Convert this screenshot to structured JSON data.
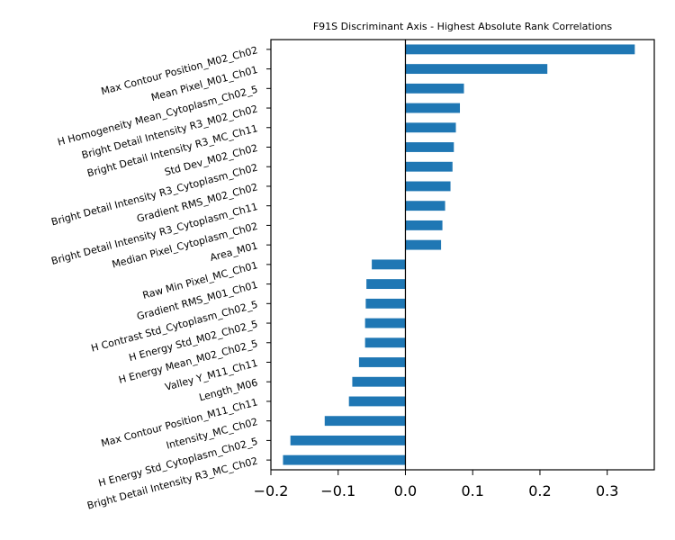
{
  "chart_data": {
    "type": "bar",
    "orientation": "horizontal",
    "title": "F91S Discriminant Axis - Highest Absolute Rank Correlations",
    "xlabel": "",
    "ylabel": "",
    "xlim": [
      -0.2,
      0.37
    ],
    "xticks": [
      "−0.2",
      "−0.1",
      "0.0",
      "0.1",
      "0.2",
      "0.3"
    ],
    "xtick_values": [
      -0.2,
      -0.1,
      0.0,
      0.1,
      0.2,
      0.3
    ],
    "grid": false,
    "bar_color": "#1f77b4",
    "categories": [
      "Max Contour Position_M02_Ch02",
      "Mean Pixel_M01_Ch01",
      "H Homogeneity Mean_Cytoplasm_Ch02_5",
      "Bright Detail Intensity R3_M02_Ch02",
      "Bright Detail Intensity R3_MC_Ch11",
      "Std Dev_M02_Ch02",
      "Bright Detail Intensity R3_Cytoplasm_Ch02",
      "Gradient RMS_M02_Ch02",
      "Bright Detail Intensity R3_Cytoplasm_Ch11",
      "Median Pixel_Cytoplasm_Ch02",
      "Area_M01",
      "Raw Min Pixel_MC_Ch01",
      "Gradient RMS_M01_Ch01",
      "H Contrast Std_Cytoplasm_Ch02_5",
      "H Energy Std_M02_Ch02_5",
      "H Energy Mean_M02_Ch02_5",
      "Valley Y_M11_Ch11",
      "Length_M06",
      "Max Contour Position_M11_Ch11",
      "Intensity_MC_Ch02",
      "H Energy Std_Cytoplasm_Ch02_5",
      "Bright Detail Intensity R3_MC_Ch02"
    ],
    "values": [
      0.341,
      0.211,
      0.087,
      0.081,
      0.075,
      0.072,
      0.07,
      0.067,
      0.059,
      0.055,
      0.053,
      -0.05,
      -0.058,
      -0.059,
      -0.06,
      -0.06,
      -0.069,
      -0.079,
      -0.084,
      -0.12,
      -0.171,
      -0.182
    ]
  }
}
